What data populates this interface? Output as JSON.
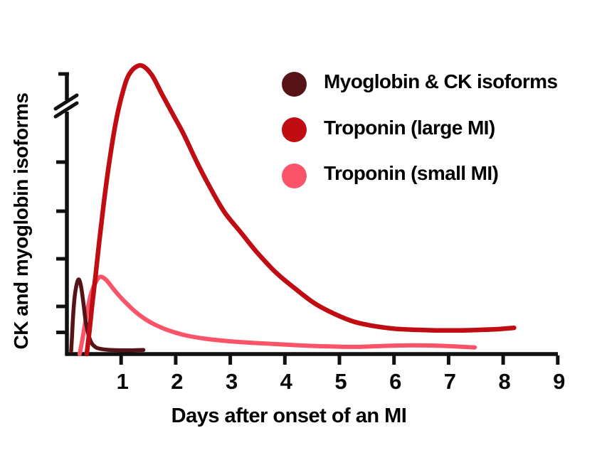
{
  "colors": {
    "axis": "#111111",
    "text": "#000000",
    "background": "#ffffff"
  },
  "chart_data": {
    "type": "line",
    "title": "",
    "xlabel": "Days after onset of an MI",
    "ylabel": "CK and myoglobin isoforms",
    "x_ticks": [
      1,
      2,
      3,
      4,
      5,
      6,
      7,
      8,
      9
    ],
    "xlim": [
      0,
      9.3
    ],
    "ylim": [
      0,
      105
    ],
    "y_ticks_unlabeled": [
      7.5,
      16.5,
      33,
      49.5,
      66.5
    ],
    "y_axis_break": {
      "present": true,
      "relative_y": 86
    },
    "grid": false,
    "legend_position": "top-right-inside",
    "series": [
      {
        "name": "Myoglobin & CK isoforms",
        "color": "#571418",
        "marker": "circle",
        "z": 2,
        "stroke_width": 5.5,
        "points": [
          [
            0.085,
            1
          ],
          [
            0.1,
            6
          ],
          [
            0.12,
            13
          ],
          [
            0.15,
            20
          ],
          [
            0.19,
            24.5
          ],
          [
            0.23,
            25.8
          ],
          [
            0.27,
            23
          ],
          [
            0.31,
            17.5
          ],
          [
            0.35,
            11.5
          ],
          [
            0.4,
            6.8
          ],
          [
            0.46,
            3.8
          ],
          [
            0.54,
            2.3
          ],
          [
            0.65,
            1.7
          ],
          [
            0.8,
            1.4
          ],
          [
            1.0,
            1.3
          ],
          [
            1.2,
            1.3
          ],
          [
            1.41,
            1.4
          ]
        ]
      },
      {
        "name": "Troponin (large MI)",
        "color": "#c00d13",
        "marker": "circle",
        "z": 3,
        "stroke_width": 6.5,
        "points": [
          [
            0.37,
            0
          ],
          [
            0.42,
            8
          ],
          [
            0.47,
            17
          ],
          [
            0.53,
            27
          ],
          [
            0.6,
            39
          ],
          [
            0.68,
            52
          ],
          [
            0.78,
            66
          ],
          [
            0.9,
            80
          ],
          [
            1.02,
            90
          ],
          [
            1.15,
            97
          ],
          [
            1.35,
            100
          ],
          [
            1.55,
            97
          ],
          [
            1.75,
            90
          ],
          [
            1.95,
            83
          ],
          [
            2.15,
            76
          ],
          [
            2.4,
            66
          ],
          [
            2.65,
            57
          ],
          [
            2.9,
            49
          ],
          [
            3.2,
            42
          ],
          [
            3.5,
            35
          ],
          [
            3.85,
            28
          ],
          [
            4.2,
            22.5
          ],
          [
            4.55,
            17.5
          ],
          [
            4.9,
            14
          ],
          [
            5.25,
            11.3
          ],
          [
            5.6,
            9.8
          ],
          [
            6.0,
            8.8
          ],
          [
            6.4,
            8.4
          ],
          [
            6.8,
            8.2
          ],
          [
            7.2,
            8.2
          ],
          [
            7.6,
            8.4
          ],
          [
            7.95,
            8.7
          ],
          [
            8.2,
            9.1
          ]
        ]
      },
      {
        "name": "Troponin (small MI)",
        "color": "#fb5368",
        "marker": "circle",
        "z": 1,
        "stroke_width": 6,
        "points": [
          [
            0.24,
            0
          ],
          [
            0.3,
            6
          ],
          [
            0.36,
            13
          ],
          [
            0.43,
            19.5
          ],
          [
            0.5,
            23.5
          ],
          [
            0.57,
            26
          ],
          [
            0.63,
            26.8
          ],
          [
            0.72,
            25.8
          ],
          [
            0.82,
            23.5
          ],
          [
            0.95,
            20.5
          ],
          [
            1.1,
            17.5
          ],
          [
            1.27,
            14.5
          ],
          [
            1.45,
            12
          ],
          [
            1.65,
            9.9
          ],
          [
            1.9,
            8
          ],
          [
            2.2,
            6.4
          ],
          [
            2.55,
            5.3
          ],
          [
            2.95,
            4.5
          ],
          [
            3.4,
            3.9
          ],
          [
            3.9,
            3.4
          ],
          [
            4.4,
            2.9
          ],
          [
            4.9,
            2.6
          ],
          [
            5.35,
            2.5
          ],
          [
            5.8,
            2.8
          ],
          [
            6.3,
            3.0
          ],
          [
            6.8,
            2.9
          ],
          [
            7.15,
            2.6
          ],
          [
            7.48,
            2.3
          ]
        ]
      }
    ]
  },
  "legend": {
    "entries": [
      {
        "label": "Myoglobin & CK isoforms",
        "color": "#571418",
        "marker": "circle"
      },
      {
        "label": "Troponin (large MI)",
        "color": "#c00d13",
        "marker": "circle"
      },
      {
        "label": "Troponin (small MI)",
        "color": "#fb5368",
        "marker": "circle"
      }
    ]
  },
  "axes": {
    "x_tick_labels": [
      "1",
      "2",
      "3",
      "4",
      "5",
      "6",
      "7",
      "8",
      "9"
    ]
  }
}
